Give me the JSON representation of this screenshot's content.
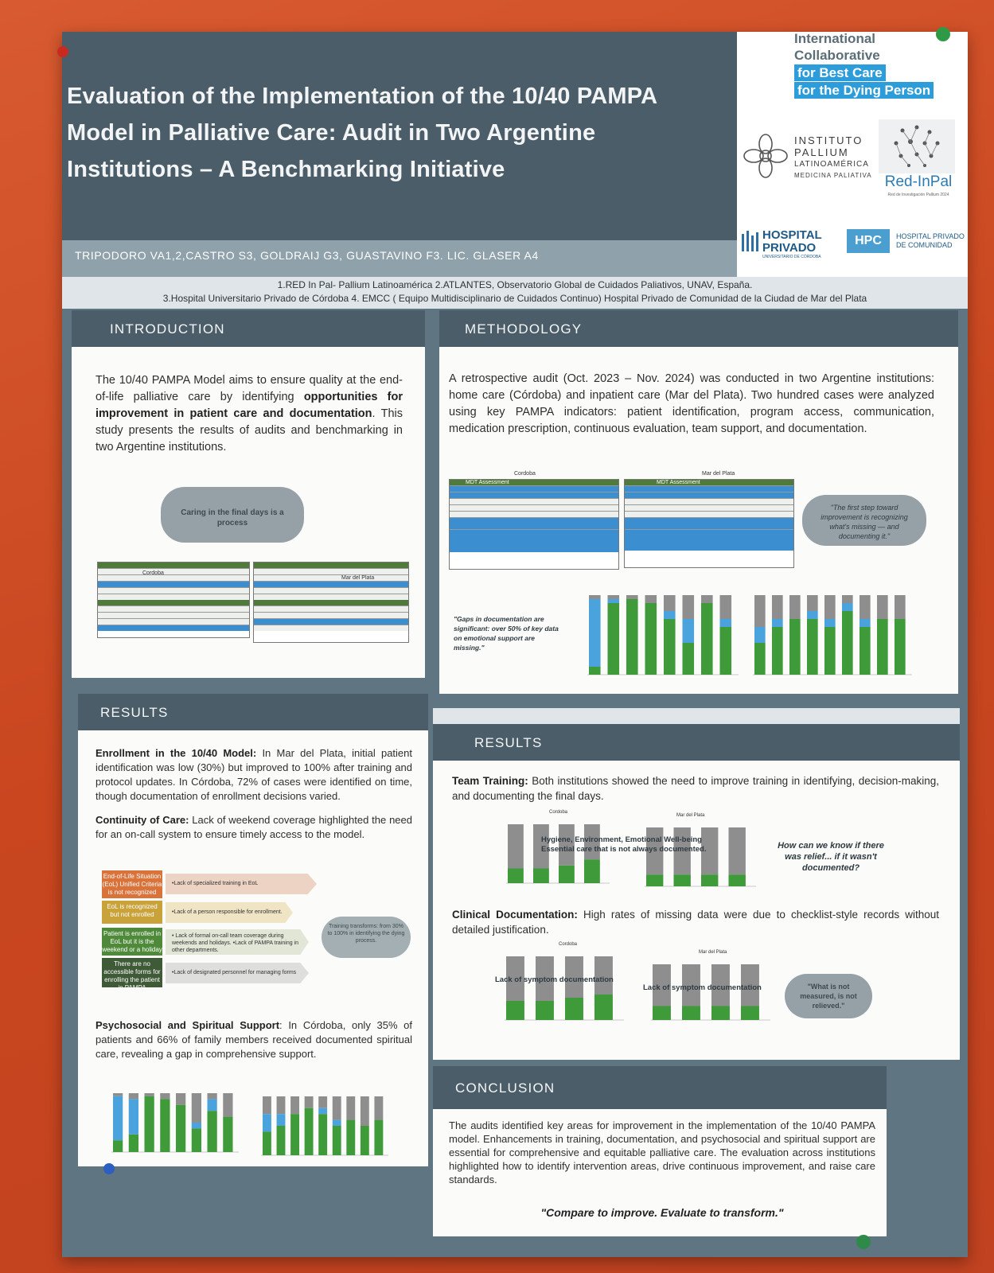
{
  "title": "Evaluation of the Implementation of the 10/40 PAMPA Model in Palliative Care: Audit in Two Argentine Institutions – A Benchmarking Initiative",
  "authors": "TRIPODORO VA1,2,CASTRO S3, GOLDRAIJ G3, GUASTAVINO F3. LIC. GLASER A4",
  "affiliations": {
    "line1": "1.RED In Pal- Pallium Latinoamérica 2.ATLANTES, Observatorio Global de Cuidados Paliativos, UNAV, España.",
    "line2": "3.Hospital Universitario Privado de Córdoba 4. EMCC ( Equipo Multidisciplinario de Cuidados Continuo) Hospital Privado de Comunidad de la Ciudad de Mar del Plata"
  },
  "logos": {
    "icb_line1": "International",
    "icb_line2": "Collaborative",
    "icb_line3": "for Best Care",
    "icb_line4": "for the Dying Person",
    "pallium_1": "INSTITUTO",
    "pallium_2": "PALLIUM",
    "pallium_3": "LATINOAMÉRICA",
    "pallium_4": "MEDICINA PALIATIVA",
    "redinpal": "Red-InPal",
    "redinpal_sub": "Red de Investigación Pallium 2024",
    "hp_1": "HOSPITAL",
    "hp_2": "PRIVADO",
    "hp_sub": "UNIVERSITARIO DE CÓRDOBA",
    "hpc": "HPC",
    "hpc_1": "HOSPITAL PRIVADO",
    "hpc_2": "DE COMUNIDAD"
  },
  "introduction": {
    "heading": "INTRODUCTION",
    "text_a": "The 10/40 PAMPA Model aims to ensure quality at the end-of-life palliative care by identifying ",
    "text_b": "opportunities for improvement in patient care and documentation",
    "text_c": ". This study presents the results of audits and benchmarking in two Argentine institutions.",
    "brush": "Caring in the final days is a process",
    "table_left": "Cordoba",
    "table_right": "Mar del Plata"
  },
  "methodology": {
    "heading": "METHODOLOGY",
    "text": "A retrospective audit (Oct. 2023 – Nov. 2024) was conducted in two Argentine institutions: home care (Córdoba) and inpatient care (Mar del Plata). Two hundred cases were analyzed using key PAMPA indicators: patient identification, program access, communication, medication prescription, continuous evaluation, team support, and documentation.",
    "table_left_title": "Cordoba",
    "table_right_title": "Mar del Plata",
    "table_col": "MDT Assessment",
    "quote": "\"The first step toward improvement is recognizing what's missing — and documenting it.\"",
    "gaps": "\"Gaps in documentation are significant: over 50% of key data on emotional support are missing.\""
  },
  "results_left": {
    "heading": "RESULTS",
    "enroll_label": "Enrollment in the 10/40 Model:",
    "enroll_text": " In Mar del Plata, initial patient identification was low (30%) but improved to 100% after training and protocol updates. In Córdoba, 72% of cases were identified on time, though documentation of enrollment decisions varied.",
    "cont_label": "Continuity of Care:",
    "cont_text": " Lack of weekend coverage highlighted the need for an on-call system to ensure timely access to the model.",
    "flow": [
      {
        "badge": "End-of-Life Situation (EoL) Unified Criteria is not recognized",
        "label": "•Lack of specialized training in EoL",
        "color": "#d9733a"
      },
      {
        "badge": "EoL is recognized but not enrolled",
        "label": "•Lack of a person responsible for enrollment.",
        "color": "#c9a23a"
      },
      {
        "badge": "Patient is enrolled in EoL but it is the weekend or a holiday",
        "label": "• Lack of formal on-call team coverage during weekends and holidays. •Lack of PAMPA training in other departments.",
        "color": "#4f8a3a"
      },
      {
        "badge": "There are no accessible forms for enrolling the patient in PAMPA",
        "label": "•Lack of designated personnel for managing forms",
        "color": "#3f5a36"
      }
    ],
    "flow_note": "Training transforms: from 30% to 100% in identifying the dying process.",
    "psy_label": "Psychosocial and Spiritual Support",
    "psy_text": ": In Córdoba, only 35% of patients and 66% of family members received documented spiritual care, revealing a gap in comprehensive support."
  },
  "results_right": {
    "heading": "RESULTS",
    "team_label": "Team Training:",
    "team_text": " Both institutions showed the need to improve training in identifying, decision-making, and documenting the final days.",
    "chart1_left": "Cordoba",
    "chart1_right": "Mar del Plata",
    "chart1_overlay": "Hygiene, Environment, Emotional Well-being Essential care that is not always documented.",
    "chart1_quote": "How can we know if there was relief... if it wasn't documented?",
    "clin_label": "Clinical Documentation:",
    "clin_text": " High rates of missing data were due to checklist-style records without detailed justification.",
    "chart2_left": "Cordoba",
    "chart2_right": "Mar del Plata",
    "chart2_overlay_a": "Lack of symptom documentation",
    "chart2_overlay_b": "Lack of symptom documentation",
    "chart2_quote": "\"What is not measured, is not relieved.\""
  },
  "conclusion": {
    "heading": "CONCLUSION",
    "text": "The audits identified key areas for improvement in the implementation of the 10/40 PAMPA model. Enhancements in training, documentation, and psychosocial and spiritual support are essential for comprehensive and equitable palliative care. The evaluation across institutions highlighted how to identify intervention areas, drive continuous improvement, and raise care standards.",
    "motto": "\"Compare to improve. Evaluate to transform.\""
  },
  "colors": {
    "wall": "#d2512a",
    "header": "#4b5d68",
    "green": "#3f9a3a",
    "blue": "#4aa3dc",
    "gray": "#8e8e8e"
  }
}
